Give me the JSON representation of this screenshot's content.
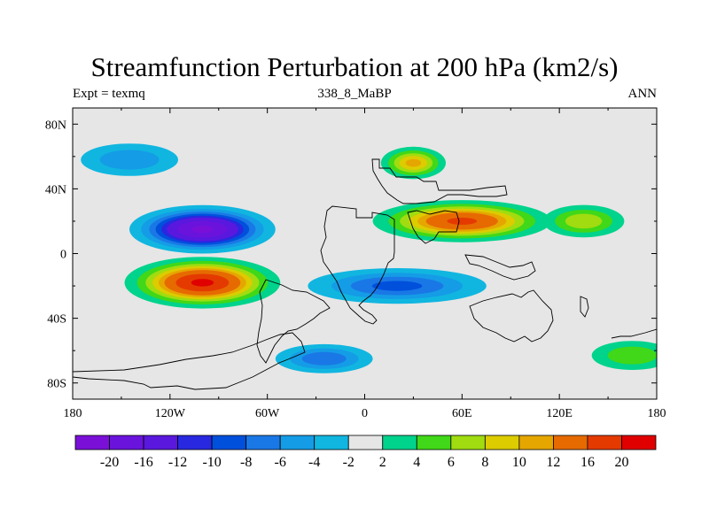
{
  "chart_data": {
    "type": "contour-map",
    "title": "Streamfunction Perturbation at 200 hPa (km2/s)",
    "subtitle_left": "Expt = texmq",
    "subtitle_center": "338_8_MaBP",
    "subtitle_right": "ANN",
    "xlim": [
      -180,
      180
    ],
    "ylim": [
      -90,
      90
    ],
    "xticks": [
      {
        "value": -180,
        "label": "180"
      },
      {
        "value": -120,
        "label": "120W"
      },
      {
        "value": -60,
        "label": "60W"
      },
      {
        "value": 0,
        "label": "0"
      },
      {
        "value": 60,
        "label": "60E"
      },
      {
        "value": 120,
        "label": "120E"
      },
      {
        "value": 180,
        "label": "180"
      }
    ],
    "yticks": [
      {
        "value": 80,
        "label": "80N"
      },
      {
        "value": 40,
        "label": "40N"
      },
      {
        "value": 0,
        "label": "0"
      },
      {
        "value": -40,
        "label": "40S"
      },
      {
        "value": -80,
        "label": "80S"
      }
    ],
    "colorbar": {
      "colors": [
        "#7a10d8",
        "#6a13dc",
        "#5a18de",
        "#2828e0",
        "#0050dc",
        "#1a78e6",
        "#159ce6",
        "#10b6e0",
        "#e6e6e6",
        "#00d38c",
        "#40d818",
        "#a0dc10",
        "#dccc00",
        "#e6a600",
        "#e66a00",
        "#e43a00",
        "#e00000"
      ],
      "labels": [
        "-20",
        "-16",
        "-12",
        "-10",
        "-8",
        "-6",
        "-4",
        "-2",
        "2",
        "4",
        "6",
        "8",
        "10",
        "12",
        "16",
        "20"
      ]
    },
    "features": [
      {
        "name": "North Pacific trough",
        "lon": -145,
        "lat": 58,
        "peak": -6,
        "rx": 30,
        "ry": 10
      },
      {
        "name": "East Pacific low",
        "lon": -100,
        "lat": 15,
        "peak": -21,
        "rx": 45,
        "ry": 15
      },
      {
        "name": "Southeast Pacific high",
        "lon": -100,
        "lat": -18,
        "peak": 21,
        "rx": 48,
        "ry": 16
      },
      {
        "name": "North Atlantic ridge",
        "lon": 30,
        "lat": 56,
        "peak": 11,
        "rx": 20,
        "ry": 10
      },
      {
        "name": "North Africa–Asia high",
        "lon": 60,
        "lat": 20,
        "peak": 17,
        "rx": 55,
        "ry": 13
      },
      {
        "name": "Pacific ridge",
        "lon": 135,
        "lat": 20,
        "peak": 8,
        "rx": 25,
        "ry": 10
      },
      {
        "name": "Southern Hemisphere trough",
        "lon": 20,
        "lat": -20,
        "peak": -9,
        "rx": 55,
        "ry": 11
      },
      {
        "name": "Antarctic trough",
        "lon": -25,
        "lat": -65,
        "peak": -8,
        "rx": 30,
        "ry": 9
      },
      {
        "name": "South Pacific ridge",
        "lon": 165,
        "lat": -63,
        "peak": 6,
        "rx": 25,
        "ry": 9
      }
    ]
  }
}
